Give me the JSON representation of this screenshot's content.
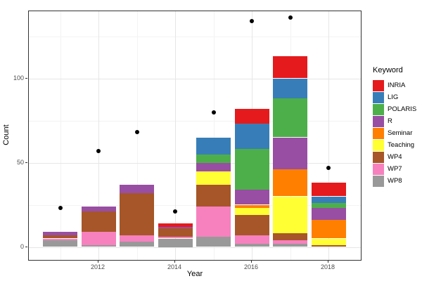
{
  "chart_data": {
    "type": "bar",
    "stacked": true,
    "title": "",
    "xlabel": "Year",
    "ylabel": "Count",
    "x": [
      2011,
      2012,
      2013,
      2014,
      2015,
      2016,
      2017,
      2018
    ],
    "x_ticks": [
      2012,
      2014,
      2016,
      2018
    ],
    "x_minor": [
      2011,
      2013,
      2015,
      2017
    ],
    "y_ticks": [
      0,
      50,
      100
    ],
    "y_minor": [
      25,
      75,
      125
    ],
    "ylim": [
      -8,
      140
    ],
    "grid": true,
    "legend_position": "right",
    "stack_order_bottom_to_top": [
      "WP8",
      "WP7",
      "WP4",
      "Teaching",
      "Seminar",
      "R",
      "POLARIS",
      "LIG",
      "INRIA"
    ],
    "series": [
      {
        "name": "INRIA",
        "color": "#E41A1C",
        "values": [
          0,
          0,
          0,
          2,
          0,
          9,
          13,
          8
        ]
      },
      {
        "name": "LIG",
        "color": "#377EB8",
        "values": [
          0,
          0,
          0,
          0,
          10,
          15,
          12,
          4
        ]
      },
      {
        "name": "POLARIS",
        "color": "#4DAF4A",
        "values": [
          0,
          0,
          0,
          0,
          5,
          24,
          23,
          3
        ]
      },
      {
        "name": "R",
        "color": "#984EA3",
        "values": [
          2,
          3,
          5,
          1,
          5,
          9,
          19,
          7
        ]
      },
      {
        "name": "Seminar",
        "color": "#FF7F00",
        "values": [
          0,
          0,
          0,
          0,
          0,
          2,
          16,
          11
        ]
      },
      {
        "name": "Teaching",
        "color": "#FFFF33",
        "values": [
          0,
          0,
          0,
          0,
          8,
          4,
          22,
          4
        ]
      },
      {
        "name": "WP4",
        "color": "#A65628",
        "values": [
          2,
          12,
          25,
          5,
          13,
          12,
          4,
          1
        ]
      },
      {
        "name": "WP7",
        "color": "#F781BF",
        "values": [
          1,
          8,
          4,
          1,
          18,
          5,
          2,
          0
        ]
      },
      {
        "name": "WP8",
        "color": "#999999",
        "values": [
          4,
          1,
          3,
          5,
          6,
          2,
          2,
          0
        ]
      }
    ],
    "points": {
      "label": "scatter-totals",
      "color": "#000000",
      "values": [
        23,
        57,
        68,
        21,
        80,
        134,
        136,
        47
      ]
    },
    "bar_totals": [
      9,
      24,
      37,
      14,
      65,
      82,
      113,
      38
    ],
    "legend": {
      "title": "Keyword"
    }
  }
}
